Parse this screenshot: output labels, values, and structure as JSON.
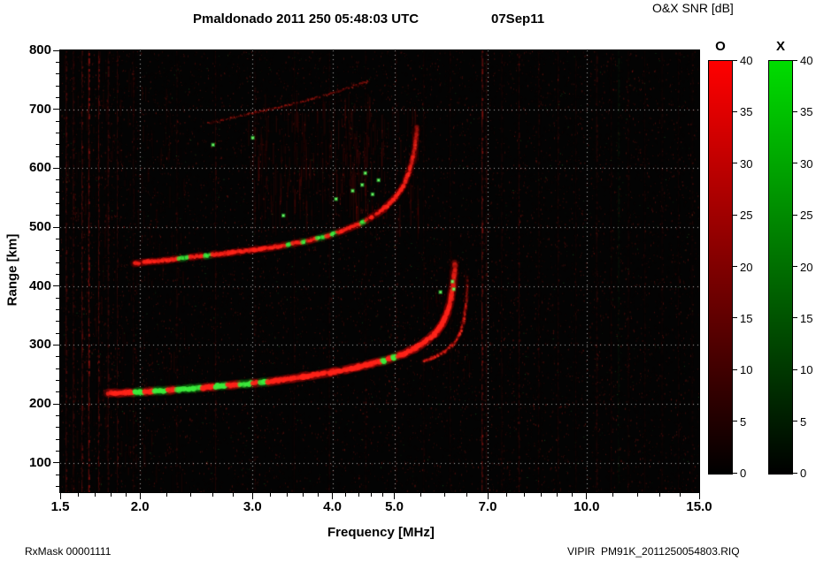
{
  "header": {
    "title": "Pmaldonado 2011 250 05:48:03 UTC",
    "date": "07Sep11",
    "colorbar_title": "O&X SNR [dB]"
  },
  "footer": {
    "rx_mask": "RxMask 00001111",
    "file": "VIPIR  PM91K_2011250054803.RIQ"
  },
  "chart_data": {
    "type": "heatmap",
    "subtype": "ionogram",
    "title": "Pmaldonado 2011 250 05:48:03 UTC",
    "date_label": "07Sep11",
    "xlabel": "Frequency [MHz]",
    "ylabel": "Range [km]",
    "x_scale": "log",
    "xlim": [
      1.5,
      15
    ],
    "ylim": [
      50,
      800
    ],
    "x_ticks": [
      {
        "v": 1.5,
        "label": "1.5"
      },
      {
        "v": 2,
        "label": "2.0"
      },
      {
        "v": 3,
        "label": "3.0"
      },
      {
        "v": 4,
        "label": "4.0"
      },
      {
        "v": 5,
        "label": "5.0"
      },
      {
        "v": 7,
        "label": "7.0"
      },
      {
        "v": 10,
        "label": "10.0"
      },
      {
        "v": 15,
        "label": "15.0"
      }
    ],
    "x_minor": [
      1.6,
      1.7,
      1.8,
      1.9,
      2.2,
      2.4,
      2.6,
      2.8,
      3.2,
      3.4,
      3.6,
      3.8,
      4.2,
      4.4,
      4.6,
      4.8,
      5.5,
      6,
      6.5,
      7.5,
      8,
      8.5,
      9,
      9.5,
      11,
      12,
      13,
      14
    ],
    "y_ticks": [
      {
        "v": 100,
        "label": "100"
      },
      {
        "v": 200,
        "label": "200"
      },
      {
        "v": 300,
        "label": "300"
      },
      {
        "v": 400,
        "label": "400"
      },
      {
        "v": 500,
        "label": "500"
      },
      {
        "v": 600,
        "label": "600"
      },
      {
        "v": 700,
        "label": "700"
      },
      {
        "v": 800,
        "label": "800"
      }
    ],
    "y_minor_step": 20,
    "grid": {
      "x": [
        2,
        3,
        4,
        5,
        7,
        10
      ],
      "y": [
        100,
        200,
        300,
        400,
        500,
        600,
        700
      ]
    },
    "colorbars": [
      {
        "name": "O",
        "min": 0,
        "max": 40,
        "ticks": [
          0,
          5,
          10,
          15,
          20,
          25,
          30,
          35,
          40
        ],
        "bottom_color": "#000000",
        "top_color": "#ff0000"
      },
      {
        "name": "X",
        "min": 0,
        "max": 40,
        "ticks": [
          0,
          5,
          10,
          15,
          20,
          25,
          30,
          35,
          40
        ],
        "bottom_color": "#000000",
        "top_color": "#00dd00"
      }
    ],
    "background_color": "#030303",
    "o_trace_color": "#ff2319",
    "x_trace_color": "#3ceb3c",
    "traces": [
      {
        "name": "F-layer-first-hop",
        "width": 5.5,
        "alpha": 0.95,
        "skip": 0.05,
        "fade": {
          "from": 320,
          "to": 445,
          "min": 0.25
        },
        "green_segments": [
          [
            1.95,
            2.03
          ],
          [
            2.1,
            2.2
          ],
          [
            2.28,
            2.5
          ],
          [
            2.62,
            2.73
          ],
          [
            2.86,
            2.99
          ],
          [
            3.08,
            3.17
          ],
          [
            4.78,
            4.85
          ],
          [
            4.97,
            5.04
          ]
        ],
        "points": [
          [
            1.78,
            218
          ],
          [
            2.0,
            220
          ],
          [
            2.2,
            223
          ],
          [
            2.4,
            226
          ],
          [
            2.6,
            229
          ],
          [
            2.8,
            232
          ],
          [
            3.0,
            235
          ],
          [
            3.2,
            238
          ],
          [
            3.4,
            242
          ],
          [
            3.6,
            246
          ],
          [
            3.8,
            250
          ],
          [
            4.0,
            254
          ],
          [
            4.2,
            258
          ],
          [
            4.4,
            263
          ],
          [
            4.6,
            268
          ],
          [
            4.8,
            273
          ],
          [
            5.0,
            279
          ],
          [
            5.2,
            286
          ],
          [
            5.4,
            295
          ],
          [
            5.6,
            306
          ],
          [
            5.8,
            320
          ],
          [
            5.95,
            336
          ],
          [
            6.05,
            355
          ],
          [
            6.13,
            378
          ],
          [
            6.18,
            402
          ],
          [
            6.21,
            425
          ],
          [
            6.22,
            440
          ]
        ]
      },
      {
        "name": "F-layer-first-hop-x-mode-cusp",
        "width": 3,
        "alpha": 0.55,
        "skip": 0.12,
        "fade": {
          "from": 330,
          "to": 430,
          "min": 0.2
        },
        "points": [
          [
            5.55,
            272
          ],
          [
            5.8,
            280
          ],
          [
            6.0,
            289
          ],
          [
            6.2,
            302
          ],
          [
            6.33,
            318
          ],
          [
            6.42,
            340
          ],
          [
            6.47,
            365
          ],
          [
            6.5,
            392
          ],
          [
            6.51,
            415
          ]
        ]
      },
      {
        "name": "second-hop",
        "width": 4.5,
        "alpha": 0.8,
        "skip": 0.08,
        "fade": {
          "from": 555,
          "to": 690,
          "min": 0.2
        },
        "green_segments": [
          [
            2.3,
            2.39
          ],
          [
            2.52,
            2.59
          ],
          [
            3.4,
            3.45
          ],
          [
            3.58,
            3.65
          ],
          [
            3.78,
            3.9
          ],
          [
            3.98,
            4.07
          ],
          [
            4.42,
            4.5
          ]
        ],
        "points": [
          [
            1.95,
            438
          ],
          [
            2.2,
            444
          ],
          [
            2.4,
            449
          ],
          [
            2.6,
            453
          ],
          [
            2.8,
            457
          ],
          [
            3.0,
            461
          ],
          [
            3.2,
            465
          ],
          [
            3.4,
            470
          ],
          [
            3.6,
            475
          ],
          [
            3.8,
            481
          ],
          [
            4.0,
            488
          ],
          [
            4.2,
            496
          ],
          [
            4.4,
            505
          ],
          [
            4.6,
            516
          ],
          [
            4.8,
            530
          ],
          [
            5.0,
            548
          ],
          [
            5.15,
            568
          ],
          [
            5.27,
            592
          ],
          [
            5.35,
            618
          ],
          [
            5.4,
            645
          ],
          [
            5.43,
            670
          ]
        ]
      },
      {
        "name": "oblique-streak",
        "width": 2,
        "alpha": 0.45,
        "skip": 0.35,
        "points": [
          [
            2.55,
            676
          ],
          [
            2.9,
            690
          ],
          [
            3.3,
            703
          ],
          [
            3.7,
            717
          ],
          [
            4.1,
            731
          ],
          [
            4.55,
            748
          ]
        ]
      }
    ],
    "green_dots": [
      [
        4.3,
        562
      ],
      [
        4.45,
        572
      ],
      [
        4.62,
        556
      ],
      [
        4.72,
        580
      ],
      [
        4.5,
        592
      ],
      [
        4.05,
        548
      ],
      [
        3.35,
        520
      ],
      [
        2.6,
        640
      ],
      [
        6.19,
        395
      ],
      [
        6.16,
        408
      ],
      [
        3.0,
        652
      ],
      [
        5.9,
        390
      ]
    ],
    "rfi_lines": [
      {
        "f": 1.53,
        "a": 0.18
      },
      {
        "f": 1.57,
        "a": 0.14
      },
      {
        "f": 1.62,
        "a": 0.2
      },
      {
        "f": 1.66,
        "a": 0.33
      },
      {
        "f": 1.72,
        "a": 0.22
      },
      {
        "f": 1.78,
        "a": 0.15
      },
      {
        "f": 1.84,
        "a": 0.12
      },
      {
        "f": 1.95,
        "a": 0.08
      },
      {
        "f": 2.28,
        "a": 0.07
      },
      {
        "f": 2.62,
        "a": 0.09
      },
      {
        "f": 3.02,
        "a": 0.06
      },
      {
        "f": 3.48,
        "a": 0.05
      },
      {
        "f": 3.95,
        "a": 0.06
      },
      {
        "f": 4.5,
        "a": 0.05
      },
      {
        "f": 5.02,
        "a": 0.06
      },
      {
        "f": 5.55,
        "a": 0.05
      },
      {
        "f": 6.1,
        "a": 0.05
      },
      {
        "f": 6.85,
        "a": 0.3
      },
      {
        "f": 6.95,
        "a": 0.12
      },
      {
        "f": 7.35,
        "a": 0.06
      },
      {
        "f": 7.82,
        "a": 0.12
      },
      {
        "f": 8.4,
        "a": 0.06
      },
      {
        "f": 9.0,
        "a": 0.07
      },
      {
        "f": 9.6,
        "a": 0.05
      },
      {
        "f": 10.35,
        "a": 0.1
      },
      {
        "f": 10.9,
        "a": 0.05
      },
      {
        "f": 11.6,
        "a": 0.06
      },
      {
        "f": 12.3,
        "a": 0.05
      },
      {
        "f": 13.1,
        "a": 0.06
      },
      {
        "f": 13.9,
        "a": 0.05
      },
      {
        "f": 14.6,
        "a": 0.05
      },
      {
        "f": 11.2,
        "a": 0.05,
        "color": "green"
      }
    ],
    "diffuse_regions": [
      {
        "f": [
          2.95,
          5.45
        ],
        "r": [
          505,
          705
        ],
        "count": 300,
        "alpha": 0.09,
        "streak_len": [
          6,
          40
        ]
      },
      {
        "f": [
          1.52,
          2.35
        ],
        "r": [
          55,
          790
        ],
        "count": 220,
        "alpha": 0.06,
        "streak_len": [
          4,
          26
        ]
      },
      {
        "f": [
          5.6,
          6.6
        ],
        "r": [
          250,
          460
        ],
        "count": 60,
        "alpha": 0.05,
        "streak_len": [
          4,
          16
        ]
      }
    ],
    "noise": {
      "seed": 20110907,
      "red_specks": 17000,
      "green_specks": 1100
    }
  }
}
